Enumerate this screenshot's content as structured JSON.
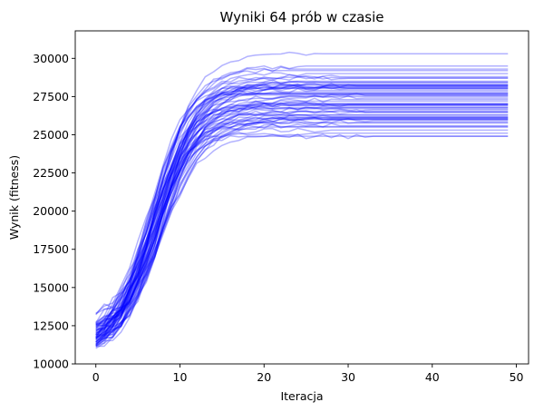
{
  "chart_data": {
    "type": "line",
    "title": "Wyniki 64 prób w czasie",
    "xlabel": "Iteracja",
    "ylabel": "Wynik (fitness)",
    "xlim": [
      -2.45,
      51.45
    ],
    "ylim": [
      10000,
      31800
    ],
    "x_ticks": [
      0,
      10,
      20,
      30,
      40,
      50
    ],
    "y_ticks": [
      10000,
      12500,
      15000,
      17500,
      20000,
      22500,
      25000,
      27500,
      30000
    ],
    "x_tick_labels": [
      "0",
      "10",
      "20",
      "30",
      "40",
      "50"
    ],
    "y_tick_labels": [
      "10000",
      "12500",
      "15000",
      "17500",
      "20000",
      "22500",
      "25000",
      "27500",
      "30000"
    ],
    "grid": false,
    "legend": false,
    "line_color": "#0000ff",
    "line_alpha": 0.3,
    "series_count": 64,
    "iterations": 50,
    "start_range": [
      11000,
      13500
    ],
    "plateau_range": [
      24900,
      30700
    ],
    "plateau_iteration_range": [
      16,
      33
    ],
    "plateau_level_examples": [
      30300,
      29500,
      29300,
      29200,
      29000,
      28800,
      28700,
      28500,
      28300,
      28200,
      28100,
      28000,
      27900,
      27800,
      27700,
      27600,
      27500,
      27400,
      27300,
      27200,
      27000,
      26900,
      26700,
      26500,
      26300,
      26000,
      25800,
      25500,
      25300,
      25100,
      24900,
      24850
    ]
  }
}
